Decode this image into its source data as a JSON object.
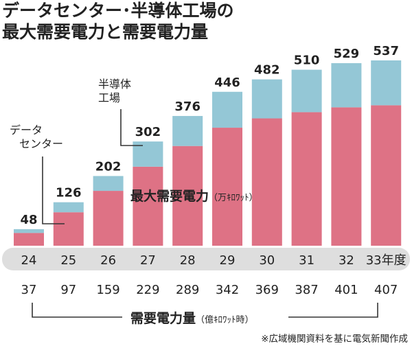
{
  "title_line1": "データセンター･半導体工場の",
  "title_line2": "最大需要電力と需要電力量",
  "annotation_datacenter": [
    "データ",
    "センター"
  ],
  "annotation_semiconductor": [
    "半導体",
    "工場"
  ],
  "series_peak_label": "最大需要電力",
  "series_peak_unit": "（万ｷﾛﾜｯﾄ）",
  "series_energy_label": "需要電力量",
  "series_energy_unit": "（億ｷﾛﾜｯﾄ時）",
  "year_suffix": "年度",
  "footnote": "※広域機関資料を基に電気新聞作成",
  "colors": {
    "datacenter": "#de7285",
    "semiconductor": "#94c7d6",
    "axis_band": "#dedede",
    "bracket": "#333333"
  },
  "chart_data": {
    "type": "bar",
    "categories": [
      "24",
      "25",
      "26",
      "27",
      "28",
      "29",
      "30",
      "31",
      "32",
      "33"
    ],
    "series": [
      {
        "name": "データセンター",
        "values": [
          37,
          97,
          159,
          229,
          289,
          342,
          369,
          387,
          401,
          407
        ]
      },
      {
        "name": "半導体工場",
        "values": [
          11,
          29,
          43,
          73,
          87,
          104,
          113,
          123,
          128,
          130
        ]
      }
    ],
    "peak_totals": [
      48,
      126,
      202,
      302,
      376,
      446,
      482,
      510,
      529,
      537
    ],
    "energy_values": [
      37,
      97,
      159,
      229,
      289,
      342,
      369,
      387,
      401,
      407
    ],
    "ylim": [
      0,
      537
    ]
  }
}
